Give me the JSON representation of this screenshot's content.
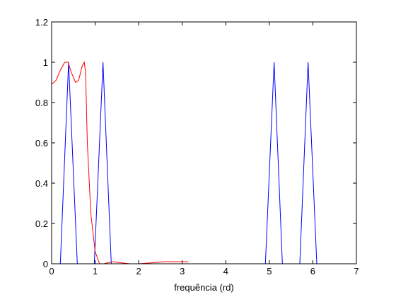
{
  "chart_data": {
    "type": "line",
    "xlabel": "frequência (rd)",
    "xlim": [
      0,
      7
    ],
    "xticks": [
      0,
      1,
      2,
      3,
      4,
      5,
      6,
      7
    ],
    "ylim": [
      0,
      1.2
    ],
    "yticks": [
      0,
      0.2,
      0.4,
      0.6,
      0.8,
      1,
      1.2
    ],
    "grid": false,
    "series": [
      {
        "color": "#0000ff",
        "x": [
          0,
          0.2,
          0.39,
          0.59,
          0.98,
          1.18,
          1.37,
          4.91,
          5.11,
          5.3,
          5.7,
          5.89,
          6.09,
          6.28
        ],
        "values": [
          0,
          0,
          1,
          0,
          0,
          1,
          0,
          0,
          1,
          0,
          0,
          1,
          0,
          0
        ]
      },
      {
        "color": "#ff0000",
        "x": [
          0,
          0.1,
          0.2,
          0.3,
          0.38,
          0.45,
          0.55,
          0.62,
          0.7,
          0.75,
          0.78,
          0.82,
          0.9,
          1.0,
          1.1,
          1.2,
          1.4,
          1.6,
          1.8,
          2.0,
          2.3,
          2.6,
          2.9,
          3.14
        ],
        "values": [
          0.89,
          0.91,
          0.96,
          1.0,
          1.0,
          0.95,
          0.9,
          0.91,
          0.98,
          1.0,
          0.95,
          0.6,
          0.25,
          0.06,
          0.0,
          0.0,
          0.01,
          0.005,
          0,
          0,
          0.005,
          0.01,
          0.01,
          0.01
        ]
      }
    ]
  }
}
